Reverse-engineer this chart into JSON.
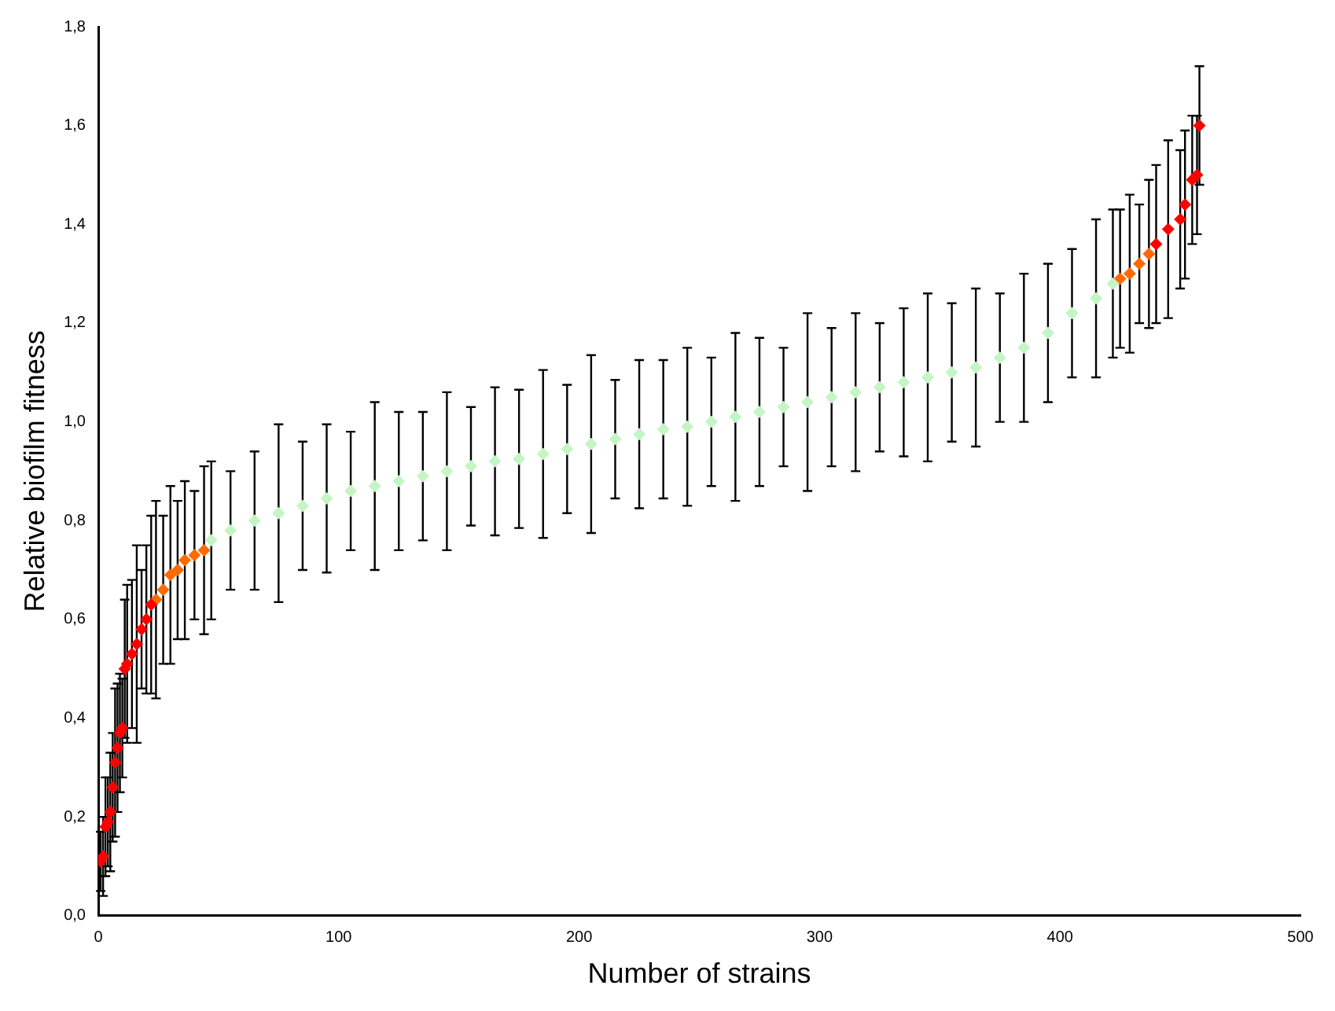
{
  "chart_data": {
    "type": "scatter",
    "xlabel": "Number of strains",
    "ylabel": "Relative biofilm fitness",
    "xlim": [
      0,
      500
    ],
    "xticks": [
      0,
      100,
      200,
      300,
      400,
      500
    ],
    "ylim": [
      0,
      1.8
    ],
    "yticks": [
      {
        "value": 0,
        "label": "0,0"
      },
      {
        "value": 0.2,
        "label": "0,2"
      },
      {
        "value": 0.4,
        "label": "0,4"
      },
      {
        "value": 0.6,
        "label": "0,6"
      },
      {
        "value": 0.8,
        "label": "0,8"
      },
      {
        "value": 1,
        "label": "1,0"
      },
      {
        "value": 1.2,
        "label": "1,2"
      },
      {
        "value": 1.4,
        "label": "1,4"
      },
      {
        "value": 1.6,
        "label": "1,6"
      },
      {
        "value": 1.8,
        "label": "1,8"
      }
    ],
    "grid": false,
    "legend": false,
    "marker": "diamond",
    "series": [
      {
        "color": "#ff0000",
        "x": [
          1,
          2,
          3,
          4,
          5,
          6,
          7,
          8,
          9,
          10,
          11,
          12,
          14,
          16,
          18,
          20,
          22
        ],
        "values": [
          0.11,
          0.12,
          0.18,
          0.19,
          0.21,
          0.26,
          0.31,
          0.34,
          0.37,
          0.38,
          0.5,
          0.51,
          0.53,
          0.55,
          0.58,
          0.6,
          0.63
        ],
        "errors": [
          0.06,
          0.08,
          0.1,
          0.09,
          0.12,
          0.11,
          0.15,
          0.13,
          0.12,
          0.1,
          0.14,
          0.16,
          0.15,
          0.2,
          0.12,
          0.15,
          0.18
        ]
      },
      {
        "color": "#ff6a00",
        "x": [
          24,
          27,
          30,
          33,
          36,
          40,
          44
        ],
        "values": [
          0.64,
          0.66,
          0.69,
          0.7,
          0.72,
          0.73,
          0.74
        ],
        "errors": [
          0.2,
          0.15,
          0.18,
          0.14,
          0.16,
          0.13,
          0.17
        ]
      },
      {
        "color": "#c4f5c4",
        "x": [
          47,
          55,
          65,
          75,
          85,
          95,
          105,
          115,
          125,
          135,
          145,
          155,
          165,
          175,
          185,
          195,
          205,
          215,
          225,
          235,
          245,
          255,
          265,
          275,
          285,
          295,
          305,
          315,
          325,
          335,
          345,
          355,
          365,
          375,
          385,
          395,
          405,
          415,
          422
        ],
        "values": [
          0.76,
          0.78,
          0.8,
          0.815,
          0.83,
          0.845,
          0.86,
          0.87,
          0.88,
          0.89,
          0.9,
          0.91,
          0.92,
          0.925,
          0.935,
          0.945,
          0.955,
          0.965,
          0.975,
          0.985,
          0.99,
          1,
          1.01,
          1.02,
          1.03,
          1.04,
          1.05,
          1.06,
          1.07,
          1.08,
          1.09,
          1.1,
          1.11,
          1.13,
          1.15,
          1.18,
          1.22,
          1.25,
          1.28
        ],
        "errors": [
          0.16,
          0.12,
          0.14,
          0.18,
          0.13,
          0.15,
          0.12,
          0.17,
          0.14,
          0.13,
          0.16,
          0.12,
          0.15,
          0.14,
          0.17,
          0.13,
          0.18,
          0.12,
          0.15,
          0.14,
          0.16,
          0.13,
          0.17,
          0.15,
          0.12,
          0.18,
          0.14,
          0.16,
          0.13,
          0.15,
          0.17,
          0.14,
          0.16,
          0.13,
          0.15,
          0.14,
          0.13,
          0.16,
          0.15
        ]
      },
      {
        "color": "#ff6a00",
        "x": [
          425,
          429,
          433,
          437
        ],
        "values": [
          1.29,
          1.3,
          1.32,
          1.34
        ],
        "errors": [
          0.14,
          0.16,
          0.12,
          0.15
        ]
      },
      {
        "color": "#ff0000",
        "x": [
          440,
          445,
          450,
          452,
          455,
          457,
          458
        ],
        "values": [
          1.36,
          1.39,
          1.41,
          1.44,
          1.49,
          1.5,
          1.6
        ],
        "errors": [
          0.16,
          0.18,
          0.14,
          0.15,
          0.13,
          0.12,
          0.12
        ]
      }
    ]
  }
}
